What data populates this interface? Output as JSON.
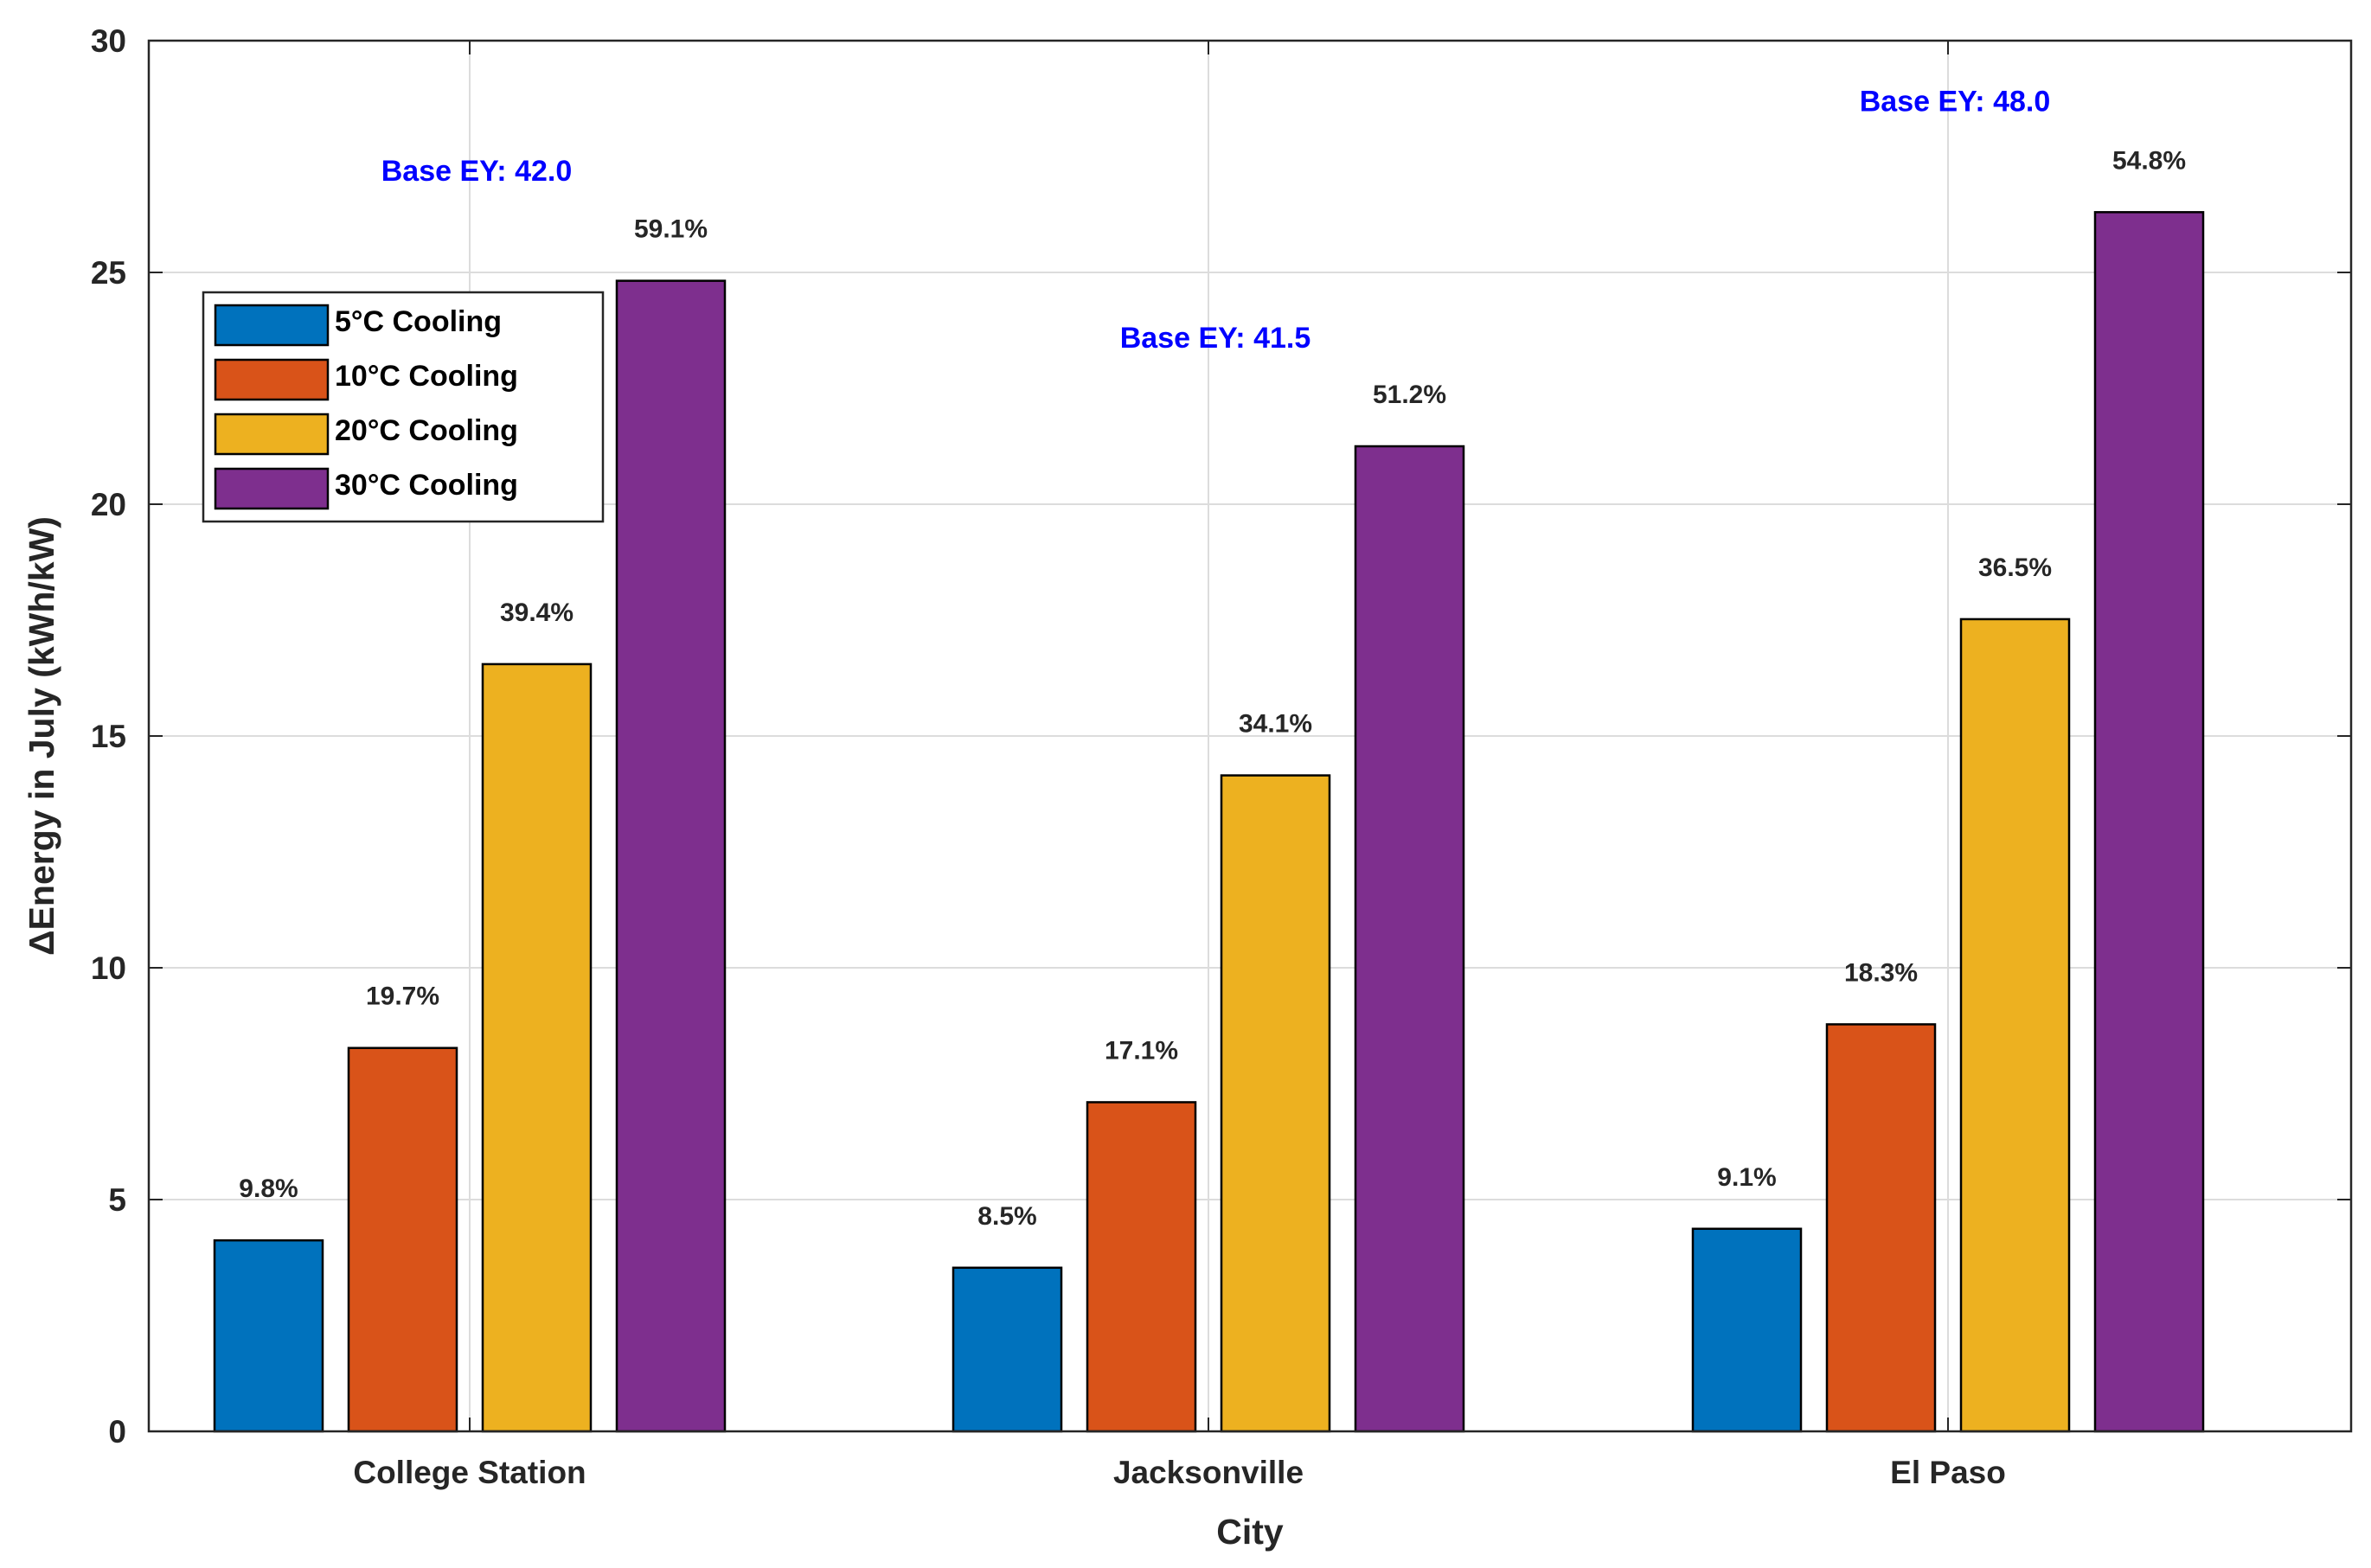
{
  "chart_data": {
    "type": "bar",
    "title": "",
    "xlabel": "City",
    "ylabel": "ΔEnergy in July (kWh/kW)",
    "ylim": [
      0,
      30
    ],
    "yticks": [
      0,
      5,
      10,
      15,
      20,
      25,
      30
    ],
    "grid": true,
    "legend_position": "top-left",
    "categories": [
      "College Station",
      "Jacksonville",
      "El Paso"
    ],
    "series": [
      {
        "name": "5°C Cooling",
        "color": "#0072BD",
        "values": [
          4.12,
          3.53,
          4.37
        ],
        "labels": [
          "9.8%",
          "8.5%",
          "9.1%"
        ]
      },
      {
        "name": "10°C Cooling",
        "color": "#D95319",
        "values": [
          8.27,
          7.1,
          8.78
        ],
        "labels": [
          "19.7%",
          "17.1%",
          "18.3%"
        ]
      },
      {
        "name": "20°C Cooling",
        "color": "#EDB120",
        "values": [
          16.55,
          14.15,
          17.52
        ],
        "labels": [
          "39.4%",
          "34.1%",
          "36.5%"
        ]
      },
      {
        "name": "30°C Cooling",
        "color": "#7E2F8E",
        "values": [
          24.82,
          21.25,
          26.3
        ],
        "labels": [
          "59.1%",
          "51.2%",
          "54.8%"
        ]
      }
    ],
    "annotations": [
      {
        "text": "Base EY: 42.0",
        "category": "College Station",
        "y": 27.2,
        "color": "#0000FF"
      },
      {
        "text": "Base EY: 41.5",
        "category": "Jacksonville",
        "y": 23.6,
        "color": "#0000FF"
      },
      {
        "text": "Base EY: 48.0",
        "category": "El Paso",
        "y": 28.7,
        "color": "#0000FF"
      }
    ]
  }
}
